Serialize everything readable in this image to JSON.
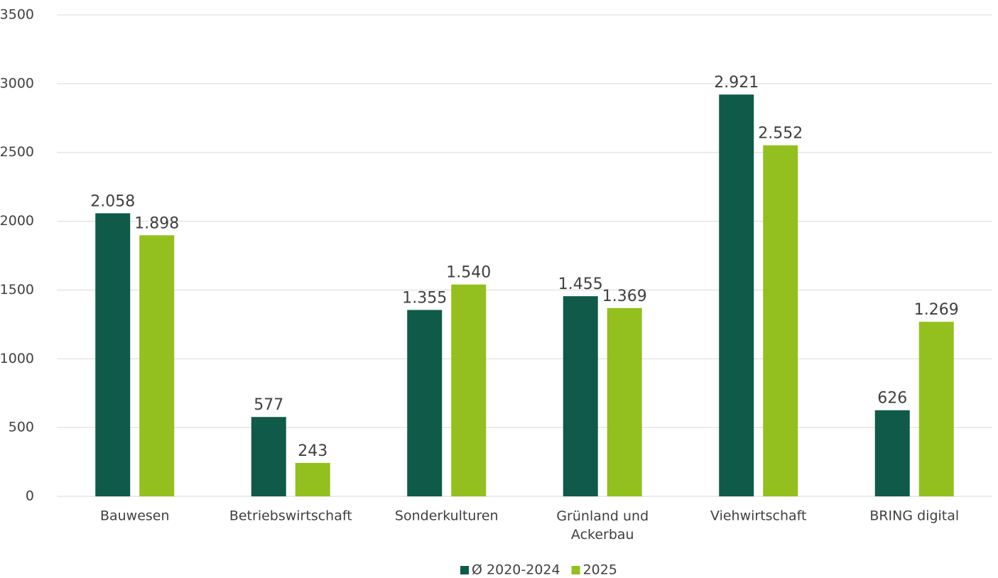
{
  "chart_data": {
    "type": "bar",
    "categories": [
      "Bauwesen",
      "Betriebswirtschaft",
      "Sonderkulturen",
      "Grünland und Ackerbau",
      "Viehwirtschaft",
      "BRING digital"
    ],
    "series": [
      {
        "name": "Ø 2020-2024",
        "color": "#105a49",
        "values": [
          2058,
          577,
          1355,
          1455,
          2921,
          626
        ],
        "value_labels": [
          "2.058",
          "577",
          "1.355",
          "1.455",
          "2.921",
          "626"
        ]
      },
      {
        "name": "2025",
        "color": "#93c01f",
        "values": [
          1898,
          243,
          1540,
          1369,
          2552,
          1269
        ],
        "value_labels": [
          "1.898",
          "243",
          "1.540",
          "1.369",
          "2.552",
          "1.269"
        ]
      }
    ],
    "ylim": [
      0,
      3500
    ],
    "yticks": [
      0,
      500,
      1000,
      1500,
      2000,
      2500,
      3000,
      3500
    ],
    "grid": true,
    "legend": "bottom"
  }
}
